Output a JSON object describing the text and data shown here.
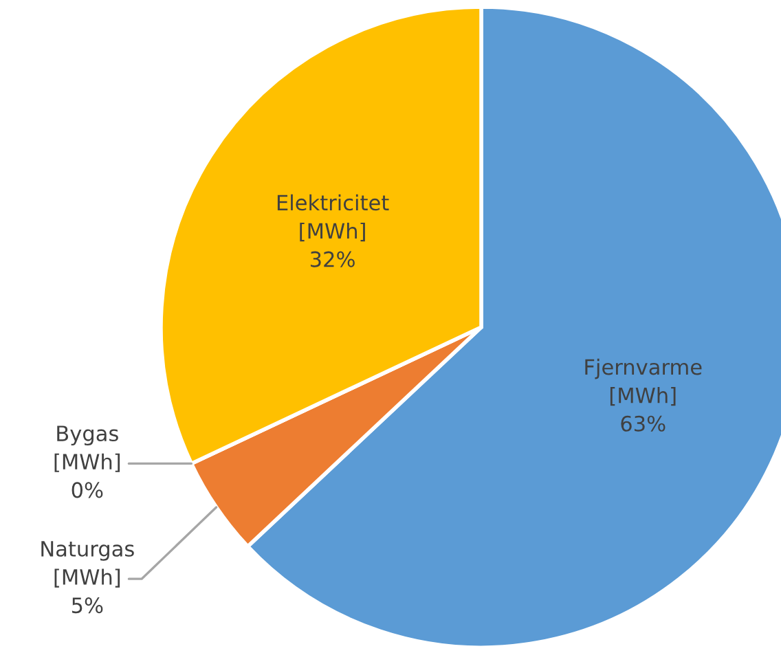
{
  "chart_data": {
    "type": "pie",
    "categories": [
      "Fjernvarme\n[MWh]",
      "Naturgas\n[MWh]",
      "Bygas\n[MWh]",
      "Elektricitet\n[MWh]"
    ],
    "values": [
      63,
      5,
      0,
      32
    ],
    "value_labels": [
      "63%",
      "5%",
      "0%",
      "32%"
    ],
    "colors": [
      "#5b9bd5",
      "#ed7d31",
      "#a5a5a5",
      "#ffc000"
    ]
  }
}
